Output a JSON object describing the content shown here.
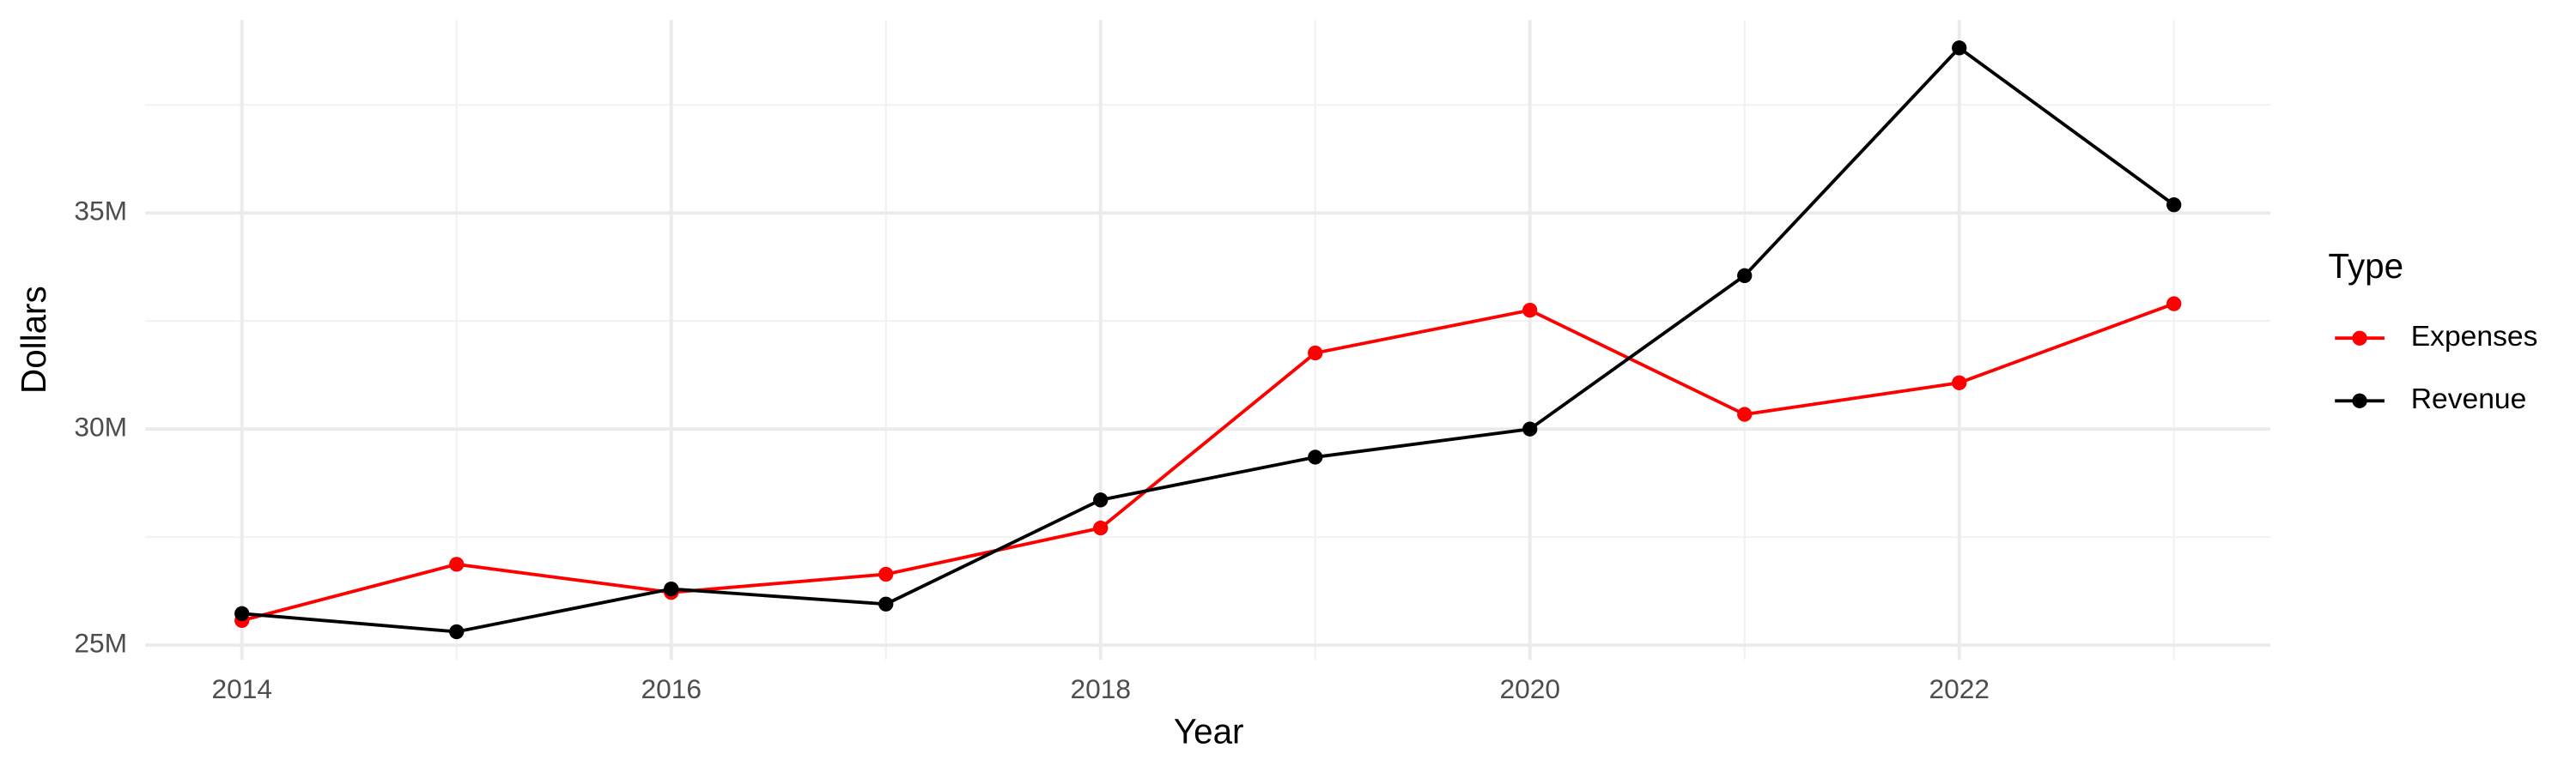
{
  "chart_data": {
    "type": "line",
    "x_label": "Year",
    "y_label": "Dollars",
    "x": [
      2014,
      2015,
      2016,
      2017,
      2018,
      2019,
      2020,
      2021,
      2022,
      2023
    ],
    "series": [
      {
        "name": "Expenses",
        "color": "#ff0000",
        "values": [
          25570000,
          26870000,
          26220000,
          26640000,
          27710000,
          31760000,
          32750000,
          30340000,
          31070000,
          32900000
        ]
      },
      {
        "name": "Revenue",
        "color": "#000000",
        "values": [
          25730000,
          25310000,
          26300000,
          25950000,
          28360000,
          29350000,
          30000000,
          33550000,
          38820000,
          35190000
        ]
      }
    ],
    "xlim": [
      2013.55,
      2023.45
    ],
    "xticks": [
      2014,
      2016,
      2018,
      2020,
      2022
    ],
    "xminor": [
      2015,
      2017,
      2019,
      2021,
      2023
    ],
    "ylim": [
      24660000,
      39470000
    ],
    "yticks": [
      {
        "value": 25000000,
        "label": "25M"
      },
      {
        "value": 30000000,
        "label": "30M"
      },
      {
        "value": 35000000,
        "label": "35M"
      }
    ],
    "yminor": [
      27500000,
      32500000,
      37500000
    ],
    "grid": true,
    "legend_title": "Type",
    "legend_position": "right"
  }
}
